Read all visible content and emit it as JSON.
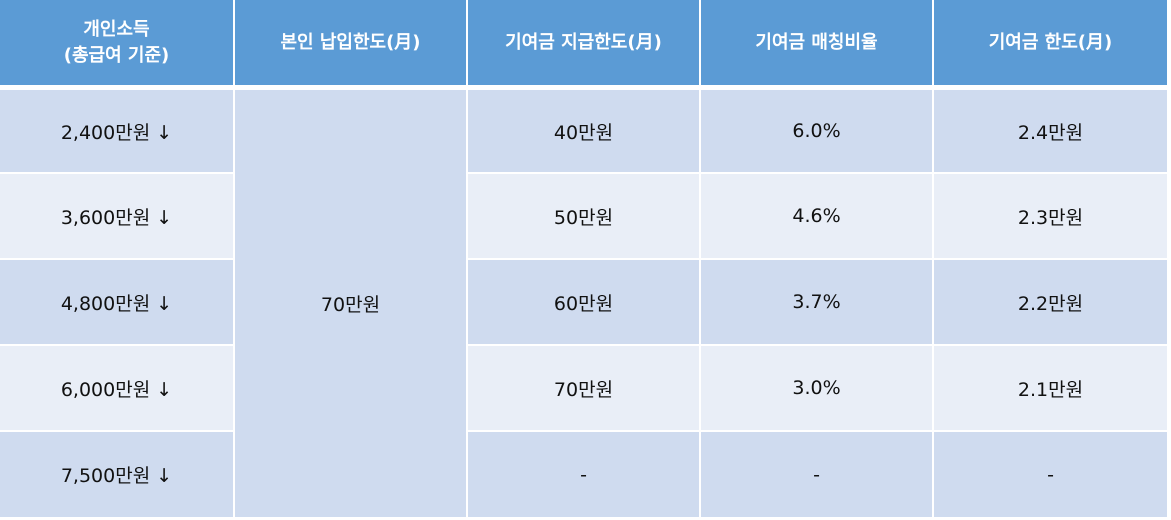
{
  "table": {
    "header": [
      "개인소득\n(총급여 기준)",
      "본인 납입한도(月)",
      "기여금 지급한도(月)",
      "기여금 매칭비율",
      "기여금 한도(月)"
    ],
    "own_limit": "70만원",
    "rows": [
      {
        "income": "2,400만원 ↓",
        "employer_limit": "40만원",
        "matching_rate": "6.0%",
        "limit": "2.4만원"
      },
      {
        "income": "3,600만원 ↓",
        "employer_limit": "50만원",
        "matching_rate": "4.6%",
        "limit": "2.3만원"
      },
      {
        "income": "4,800만원 ↓",
        "employer_limit": "60만원",
        "matching_rate": "3.7%",
        "limit": "2.2만원"
      },
      {
        "income": "6,000만원 ↓",
        "employer_limit": "70만원",
        "matching_rate": "3.0%",
        "limit": "2.1만원"
      },
      {
        "income": "7,500만원 ↓",
        "employer_limit": "-",
        "matching_rate": "-",
        "limit": "-"
      }
    ]
  }
}
